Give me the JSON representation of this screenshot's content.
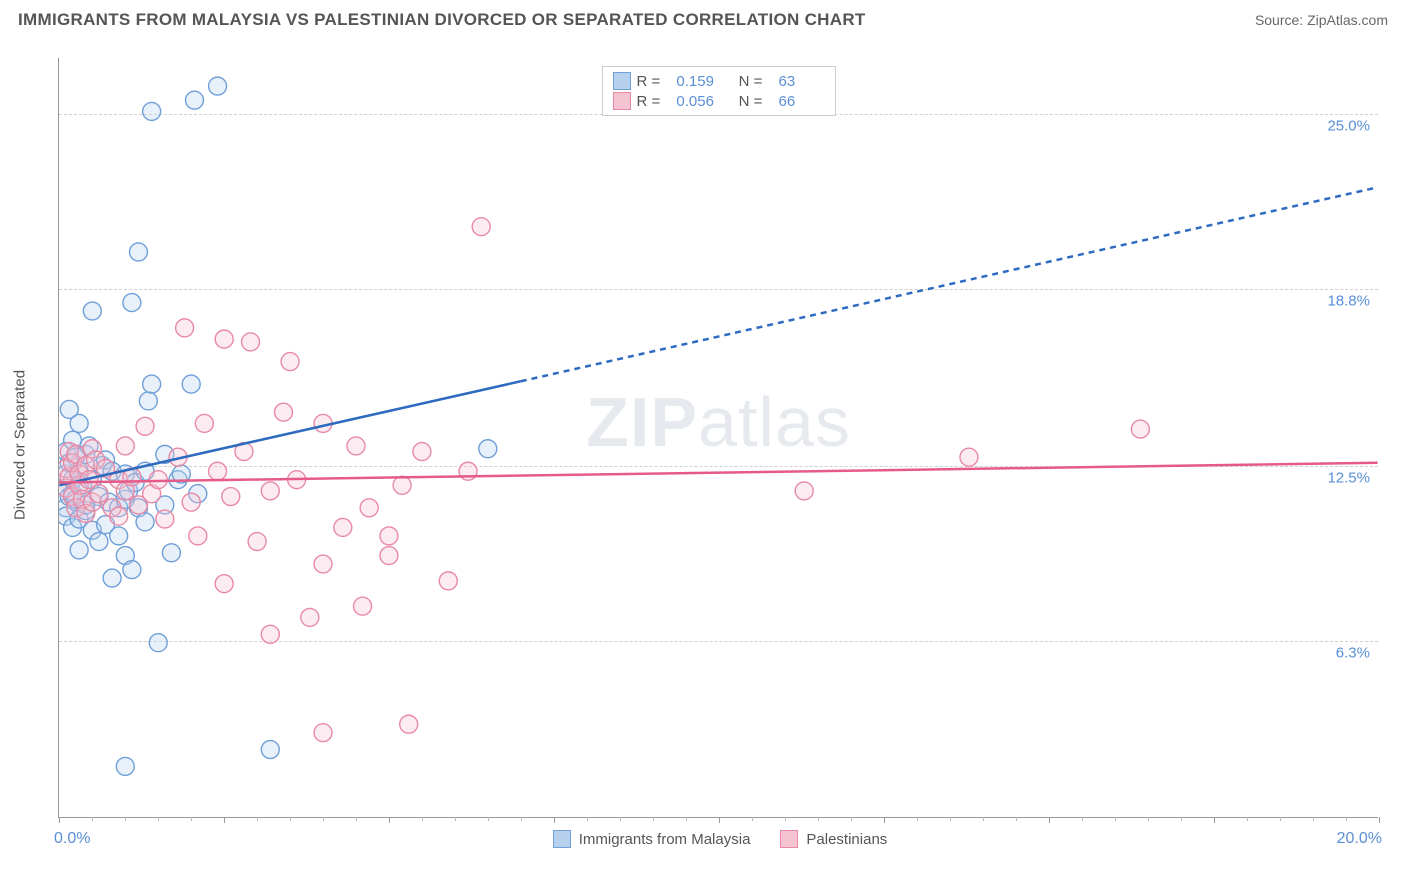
{
  "title": "IMMIGRANTS FROM MALAYSIA VS PALESTINIAN DIVORCED OR SEPARATED CORRELATION CHART",
  "source": "Source: ZipAtlas.com",
  "watermark": {
    "bold": "ZIP",
    "rest": "atlas"
  },
  "y_axis": {
    "label": "Divorced or Separated"
  },
  "chart": {
    "type": "scatter",
    "background_color": "#ffffff",
    "grid_color": "#d0d0d0",
    "axis_color": "#999999",
    "tick_label_color": "#5a8fd6",
    "label_fontsize": 15,
    "title_fontsize": 17,
    "xlim": [
      0.0,
      20.0
    ],
    "ylim": [
      0.0,
      27.0
    ],
    "y_ticks": [
      {
        "value": 6.3,
        "label": "6.3%"
      },
      {
        "value": 12.5,
        "label": "12.5%"
      },
      {
        "value": 18.8,
        "label": "18.8%"
      },
      {
        "value": 25.0,
        "label": "25.0%"
      }
    ],
    "x_ticks": {
      "left_label": "0.0%",
      "right_label": "20.0%",
      "major": [
        0,
        2.5,
        5,
        7.5,
        10,
        12.5,
        15,
        17.5,
        20
      ],
      "minor_step": 0.5
    },
    "marker": {
      "radius": 9,
      "fill_opacity": 0.32,
      "stroke_width": 1.4
    },
    "trend_line_width": 2.5,
    "dash_pattern": "6,5"
  },
  "series": [
    {
      "name": "Immigrants from Malaysia",
      "fill_color": "#b7d0ee",
      "stroke_color": "#6f9fd8",
      "line_color": "#2e6bc0",
      "stats": {
        "R": "0.159",
        "N": "63"
      },
      "trend": {
        "x1": 0.0,
        "y1": 11.8,
        "x2_solid": 7.0,
        "y2_solid": 15.5,
        "x2_dash": 20.0,
        "y2_dash": 22.4
      },
      "points": [
        [
          0.1,
          11.7
        ],
        [
          0.1,
          12.2
        ],
        [
          0.1,
          13.0
        ],
        [
          0.1,
          11.0
        ],
        [
          0.1,
          10.7
        ],
        [
          0.15,
          12.6
        ],
        [
          0.15,
          11.4
        ],
        [
          0.15,
          14.5
        ],
        [
          0.2,
          11.5
        ],
        [
          0.2,
          12.0
        ],
        [
          0.2,
          10.3
        ],
        [
          0.2,
          13.4
        ],
        [
          0.25,
          11.3
        ],
        [
          0.25,
          12.8
        ],
        [
          0.3,
          10.6
        ],
        [
          0.3,
          12.3
        ],
        [
          0.3,
          9.5
        ],
        [
          0.3,
          14.0
        ],
        [
          0.35,
          11.8
        ],
        [
          0.4,
          12.9
        ],
        [
          0.4,
          10.9
        ],
        [
          0.4,
          11.1
        ],
        [
          0.45,
          13.2
        ],
        [
          0.5,
          12.0
        ],
        [
          0.5,
          10.2
        ],
        [
          0.5,
          18.0
        ],
        [
          0.6,
          11.4
        ],
        [
          0.6,
          9.8
        ],
        [
          0.65,
          12.5
        ],
        [
          0.7,
          10.4
        ],
        [
          0.7,
          12.7
        ],
        [
          0.75,
          11.2
        ],
        [
          0.8,
          8.5
        ],
        [
          0.8,
          12.3
        ],
        [
          0.9,
          11.0
        ],
        [
          0.9,
          10.0
        ],
        [
          1.0,
          9.3
        ],
        [
          1.0,
          11.3
        ],
        [
          1.0,
          12.2
        ],
        [
          1.05,
          11.6
        ],
        [
          1.1,
          8.8
        ],
        [
          1.1,
          18.3
        ],
        [
          1.15,
          11.9
        ],
        [
          1.2,
          20.1
        ],
        [
          1.2,
          11.0
        ],
        [
          1.3,
          10.5
        ],
        [
          1.3,
          12.3
        ],
        [
          1.35,
          14.8
        ],
        [
          1.4,
          15.4
        ],
        [
          1.6,
          11.1
        ],
        [
          1.6,
          12.9
        ],
        [
          1.7,
          9.4
        ],
        [
          1.8,
          12.0
        ],
        [
          1.85,
          12.2
        ],
        [
          2.0,
          15.4
        ],
        [
          2.05,
          25.5
        ],
        [
          2.1,
          11.5
        ],
        [
          2.4,
          26.0
        ],
        [
          1.5,
          6.2
        ],
        [
          1.0,
          1.8
        ],
        [
          1.4,
          25.1
        ],
        [
          3.2,
          2.4
        ],
        [
          6.5,
          13.1
        ]
      ]
    },
    {
      "name": "Palestinians",
      "fill_color": "#f5c4d2",
      "stroke_color": "#e889a5",
      "line_color": "#e65a87",
      "stats": {
        "R": "0.056",
        "N": "66"
      },
      "trend": {
        "x1": 0.0,
        "y1": 11.9,
        "x2_solid": 20.0,
        "y2_solid": 12.6,
        "x2_dash": 20.0,
        "y2_dash": 12.6
      },
      "points": [
        [
          0.1,
          12.4
        ],
        [
          0.1,
          11.7
        ],
        [
          0.15,
          12.1
        ],
        [
          0.15,
          13.0
        ],
        [
          0.2,
          11.4
        ],
        [
          0.2,
          12.6
        ],
        [
          0.25,
          11.0
        ],
        [
          0.25,
          12.9
        ],
        [
          0.3,
          11.8
        ],
        [
          0.3,
          12.2
        ],
        [
          0.35,
          11.3
        ],
        [
          0.4,
          12.5
        ],
        [
          0.4,
          10.8
        ],
        [
          0.45,
          12.0
        ],
        [
          0.5,
          11.2
        ],
        [
          0.5,
          13.1
        ],
        [
          0.55,
          12.7
        ],
        [
          0.6,
          11.5
        ],
        [
          0.7,
          12.4
        ],
        [
          0.8,
          11.0
        ],
        [
          0.9,
          12.0
        ],
        [
          0.9,
          10.7
        ],
        [
          1.0,
          11.6
        ],
        [
          1.0,
          13.2
        ],
        [
          1.1,
          12.1
        ],
        [
          1.2,
          11.1
        ],
        [
          1.3,
          13.9
        ],
        [
          1.4,
          11.5
        ],
        [
          1.5,
          12.0
        ],
        [
          1.6,
          10.6
        ],
        [
          1.8,
          12.8
        ],
        [
          1.9,
          17.4
        ],
        [
          2.0,
          11.2
        ],
        [
          2.1,
          10.0
        ],
        [
          2.2,
          14.0
        ],
        [
          2.4,
          12.3
        ],
        [
          2.5,
          17.0
        ],
        [
          2.6,
          11.4
        ],
        [
          2.8,
          13.0
        ],
        [
          2.9,
          16.9
        ],
        [
          3.0,
          9.8
        ],
        [
          3.2,
          11.6
        ],
        [
          3.4,
          14.4
        ],
        [
          3.5,
          16.2
        ],
        [
          3.6,
          12.0
        ],
        [
          3.8,
          7.1
        ],
        [
          4.0,
          9.0
        ],
        [
          4.0,
          14.0
        ],
        [
          4.3,
          10.3
        ],
        [
          4.5,
          13.2
        ],
        [
          4.6,
          7.5
        ],
        [
          4.7,
          11.0
        ],
        [
          5.0,
          10.0
        ],
        [
          5.0,
          9.3
        ],
        [
          5.2,
          11.8
        ],
        [
          5.5,
          13.0
        ],
        [
          5.3,
          3.3
        ],
        [
          6.4,
          21.0
        ],
        [
          5.9,
          8.4
        ],
        [
          6.2,
          12.3
        ],
        [
          11.3,
          11.6
        ],
        [
          13.8,
          12.8
        ],
        [
          16.4,
          13.8
        ],
        [
          4.0,
          3.0
        ],
        [
          3.2,
          6.5
        ],
        [
          2.5,
          8.3
        ]
      ]
    }
  ],
  "top_legend": {
    "r_label": "R =",
    "n_label": "N ="
  },
  "bottom_legend": {
    "items": [
      "Immigrants from Malaysia",
      "Palestinians"
    ]
  }
}
